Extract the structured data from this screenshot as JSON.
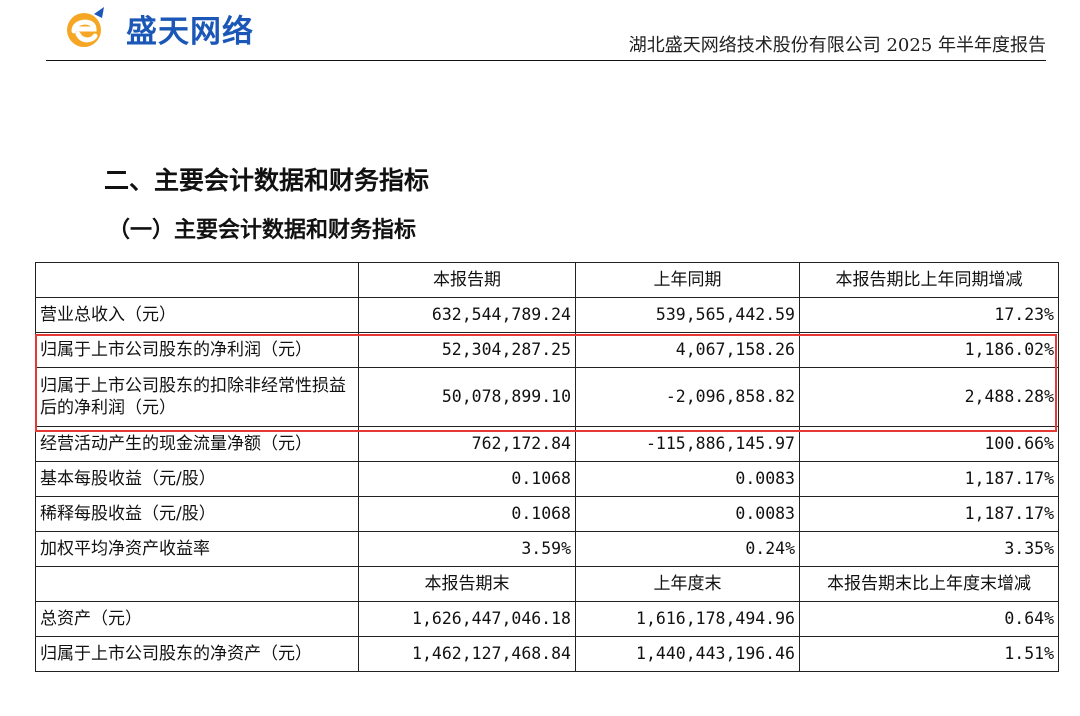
{
  "header": {
    "logo_text": "盛天网络",
    "report_title": "湖北盛天网络技术股份有限公司 2025 年半年度报告"
  },
  "section_title": "二、主要会计数据和财务指标",
  "subsection_title": "（一）主要会计数据和财务指标",
  "colors": {
    "logo_blue": "#1a57b6",
    "logo_orange": "#f5a623",
    "highlight_red": "#e53935"
  },
  "table": {
    "headers1": [
      "",
      "本报告期",
      "上年同期",
      "本报告期比上年同期增减"
    ],
    "rows1": [
      [
        "营业总收入（元）",
        "632,544,789.24",
        "539,565,442.59",
        "17.23%"
      ],
      [
        "归属于上市公司股东的净利润（元）",
        "52,304,287.25",
        "4,067,158.26",
        "1,186.02%"
      ],
      [
        "归属于上市公司股东的扣除非经常性损益后的净利润（元）",
        "50,078,899.10",
        "-2,096,858.82",
        "2,488.28%"
      ],
      [
        "经营活动产生的现金流量净额（元）",
        "762,172.84",
        "-115,886,145.97",
        "100.66%"
      ],
      [
        "基本每股收益（元/股）",
        "0.1068",
        "0.0083",
        "1,187.17%"
      ],
      [
        "稀释每股收益（元/股）",
        "0.1068",
        "0.0083",
        "1,187.17%"
      ],
      [
        "加权平均净资产收益率",
        "3.59%",
        "0.24%",
        "3.35%"
      ]
    ],
    "headers2": [
      "",
      "本报告期末",
      "上年度末",
      "本报告期末比上年度末增减"
    ],
    "rows2": [
      [
        "总资产（元）",
        "1,626,447,046.18",
        "1,616,178,494.96",
        "0.64%"
      ],
      [
        "归属于上市公司股东的净资产（元）",
        "1,462,127,468.84",
        "1,440,443,196.46",
        "1.51%"
      ]
    ]
  }
}
